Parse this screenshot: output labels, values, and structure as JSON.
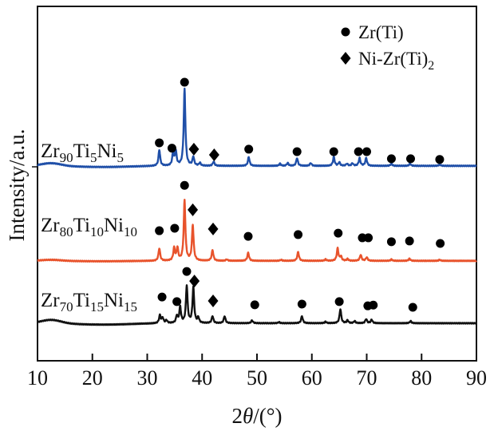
{
  "chart_data": {
    "type": "line",
    "title": "",
    "xlabel_parts": [
      {
        "t": "2"
      },
      {
        "t": "θ",
        "italic": true
      },
      {
        "t": "/(°)"
      }
    ],
    "ylabel": "Intensity/a.u.",
    "xlim": [
      10,
      90
    ],
    "ylim": [
      0,
      100
    ],
    "xticks": [
      10,
      20,
      30,
      40,
      50,
      60,
      70,
      80,
      90
    ],
    "grid": false,
    "legend": {
      "placement": "top-right",
      "entries": [
        {
          "marker": "circle",
          "parts": [
            {
              "t": "Zr(Ti)"
            }
          ]
        },
        {
          "marker": "diamond",
          "parts": [
            {
              "t": "Ni-Zr(Ti)"
            },
            {
              "sub": "2"
            }
          ]
        }
      ]
    },
    "series": [
      {
        "name": "Zr90Ti5Ni5",
        "label_parts": [
          {
            "t": "Zr"
          },
          {
            "sub": "90"
          },
          {
            "t": "Ti"
          },
          {
            "sub": "5"
          },
          {
            "t": "Ni"
          },
          {
            "sub": "5"
          }
        ],
        "color": "#1f4fa8",
        "baseline": 55,
        "hump": 0.8,
        "peaks": [
          [
            32.2,
            4.5
          ],
          [
            34.7,
            3.4
          ],
          [
            35.2,
            4
          ],
          [
            36.8,
            21.6
          ],
          [
            38.4,
            2.5
          ],
          [
            39.6,
            0.8
          ],
          [
            42.1,
            1.2
          ],
          [
            48.5,
            2.5
          ],
          [
            54.2,
            0.6
          ],
          [
            55.6,
            0.8
          ],
          [
            57.3,
            2.2
          ],
          [
            59.8,
            0.8
          ],
          [
            64.0,
            2.5
          ],
          [
            65.0,
            1
          ],
          [
            66.4,
            0.6
          ],
          [
            67.4,
            0.7
          ],
          [
            68.7,
            2.2
          ],
          [
            69.9,
            2.2
          ],
          [
            74.5,
            0.6
          ],
          [
            77.9,
            0.6
          ],
          [
            83.3,
            0.4
          ]
        ],
        "markers": [
          [
            "circle",
            32.2,
            61.5
          ],
          [
            "circle",
            34.5,
            60
          ],
          [
            "circle",
            36.8,
            78.6
          ],
          [
            "diamond",
            38.5,
            59.7
          ],
          [
            "diamond",
            42.2,
            58.1
          ],
          [
            "circle",
            48.5,
            59.7
          ],
          [
            "circle",
            57.3,
            59
          ],
          [
            "circle",
            64.0,
            59
          ],
          [
            "circle",
            68.5,
            59
          ],
          [
            "circle",
            70.0,
            59
          ],
          [
            "circle",
            74.5,
            57
          ],
          [
            "circle",
            78.0,
            57
          ],
          [
            "circle",
            83.3,
            56.8
          ]
        ]
      },
      {
        "name": "Zr80Ti10Ni10",
        "label_parts": [
          {
            "t": "Zr"
          },
          {
            "sub": "80"
          },
          {
            "t": "Ti"
          },
          {
            "sub": "10"
          },
          {
            "t": "Ni"
          },
          {
            "sub": "10"
          }
        ],
        "color": "#e8532c",
        "baseline": 28.2,
        "hump": 0.3,
        "peaks": [
          [
            32.2,
            3.5
          ],
          [
            34.9,
            3.5
          ],
          [
            35.5,
            3.5
          ],
          [
            36.8,
            17
          ],
          [
            38.3,
            10
          ],
          [
            41.9,
            3
          ],
          [
            44.5,
            0.4
          ],
          [
            48.4,
            2.3
          ],
          [
            54.4,
            0.3
          ],
          [
            57.5,
            2.5
          ],
          [
            62.5,
            0.4
          ],
          [
            64.7,
            3.5
          ],
          [
            65.3,
            1.2
          ],
          [
            66.5,
            0.5
          ],
          [
            68.9,
            1.7
          ],
          [
            70.0,
            1
          ],
          [
            74.5,
            0.4
          ],
          [
            77.8,
            0.6
          ],
          [
            83.3,
            0.3
          ]
        ],
        "markers": [
          [
            "circle",
            32.2,
            36.7
          ],
          [
            "circle",
            35.0,
            37.4
          ],
          [
            "circle",
            36.8,
            49.5
          ],
          [
            "diamond",
            38.3,
            42.6
          ],
          [
            "diamond",
            42.0,
            37.2
          ],
          [
            "circle",
            48.4,
            35.1
          ],
          [
            "circle",
            57.5,
            35.6
          ],
          [
            "circle",
            64.8,
            36
          ],
          [
            "circle",
            69.2,
            34.7
          ],
          [
            "circle",
            70.3,
            34.7
          ],
          [
            "circle",
            74.5,
            33.6
          ],
          [
            "circle",
            77.8,
            33.8
          ],
          [
            "circle",
            83.4,
            33.1
          ]
        ]
      },
      {
        "name": "Zr70Ti15Ni15",
        "label_parts": [
          {
            "t": "Zr"
          },
          {
            "sub": "70"
          },
          {
            "t": "Ti"
          },
          {
            "sub": "15"
          },
          {
            "t": "Ni"
          },
          {
            "sub": "15"
          }
        ],
        "color": "#111111",
        "baseline": 10.6,
        "hump": 1.0,
        "peaks": [
          [
            32.3,
            2.2
          ],
          [
            32.8,
            1.5
          ],
          [
            33.5,
            0.8
          ],
          [
            35.4,
            2
          ],
          [
            36.0,
            4.5
          ],
          [
            37.2,
            10.5
          ],
          [
            38.4,
            10
          ],
          [
            39.3,
            1.5
          ],
          [
            41.9,
            2
          ],
          [
            44.1,
            2
          ],
          [
            49.1,
            0.8
          ],
          [
            54.0,
            0.3
          ],
          [
            58.2,
            2
          ],
          [
            62.5,
            0.4
          ],
          [
            65.2,
            4
          ],
          [
            66.5,
            0.8
          ],
          [
            67.8,
            0.6
          ],
          [
            69.9,
            1.2
          ],
          [
            70.9,
            1
          ],
          [
            78.0,
            0.6
          ]
        ],
        "markers": [
          [
            "circle",
            32.7,
            18
          ],
          [
            "circle",
            35.4,
            16.7
          ],
          [
            "circle",
            37.2,
            25.2
          ],
          [
            "diamond",
            38.6,
            22.5
          ],
          [
            "diamond",
            42.0,
            16.9
          ],
          [
            "circle",
            49.6,
            15.8
          ],
          [
            "circle",
            58.2,
            16
          ],
          [
            "circle",
            65.0,
            16.7
          ],
          [
            "circle",
            70.2,
            15.5
          ],
          [
            "circle",
            71.2,
            15.7
          ],
          [
            "circle",
            78.4,
            15.1
          ]
        ]
      }
    ]
  }
}
